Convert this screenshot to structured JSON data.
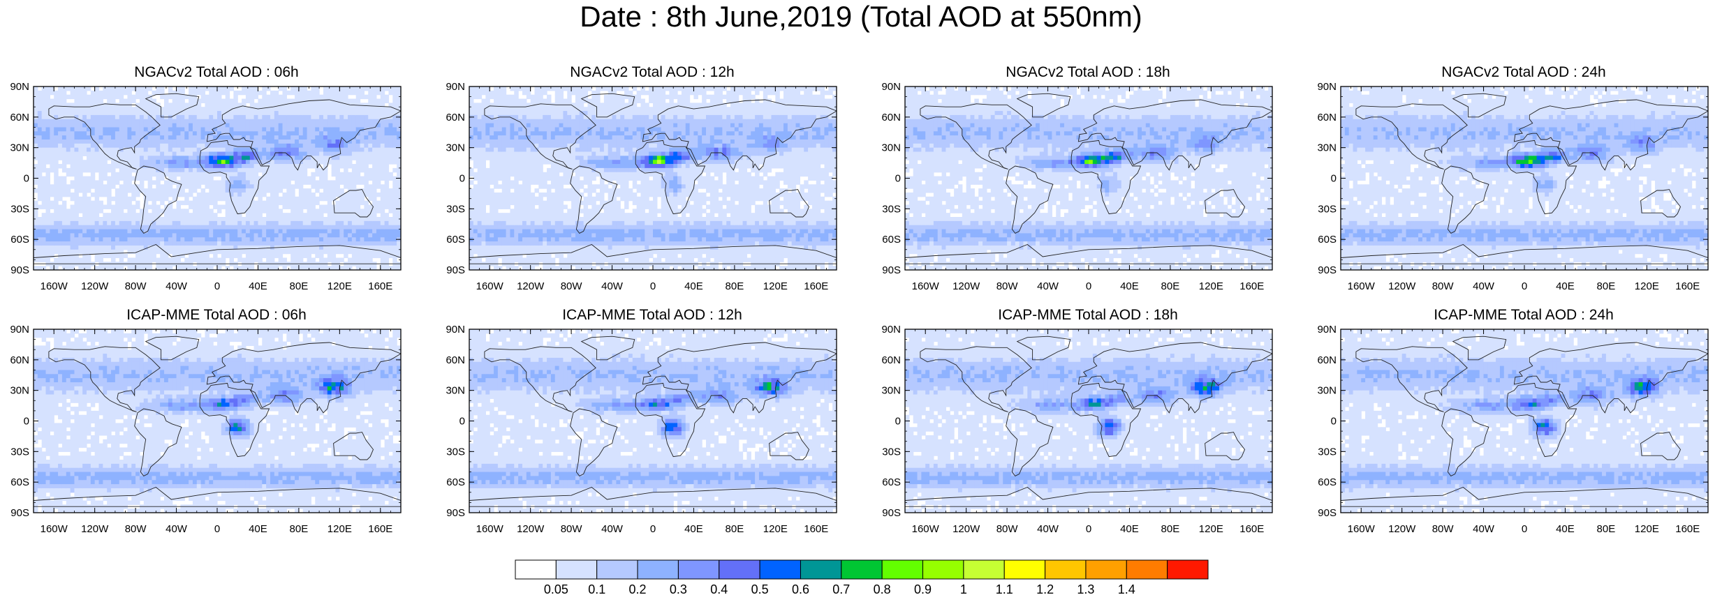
{
  "title": "Date : 8th June,2019 (Total AOD at 550nm)",
  "axes": {
    "lat_ticks": [
      "90N",
      "60N",
      "30N",
      "0",
      "30S",
      "60S",
      "90S"
    ],
    "lon_ticks": [
      "160W",
      "120W",
      "80W",
      "40W",
      "0",
      "40E",
      "80E",
      "120E",
      "160E"
    ],
    "lat_values": [
      90,
      60,
      30,
      0,
      -30,
      -60,
      -90
    ],
    "lon_values": [
      -160,
      -120,
      -80,
      -40,
      0,
      40,
      80,
      120,
      160
    ],
    "lon_range": [
      -180,
      180
    ],
    "lat_range": [
      -90,
      90
    ]
  },
  "panels": [
    {
      "title": "NGACv2 Total AOD : 06h",
      "model": "NGACv2",
      "hour": "06h"
    },
    {
      "title": "NGACv2 Total AOD : 12h",
      "model": "NGACv2",
      "hour": "12h"
    },
    {
      "title": "NGACv2 Total AOD : 18h",
      "model": "NGACv2",
      "hour": "18h"
    },
    {
      "title": "NGACv2 Total AOD : 24h",
      "model": "NGACv2",
      "hour": "24h"
    },
    {
      "title": "ICAP-MME Total AOD : 06h",
      "model": "ICAP-MME",
      "hour": "06h"
    },
    {
      "title": "ICAP-MME Total AOD : 12h",
      "model": "ICAP-MME",
      "hour": "12h"
    },
    {
      "title": "ICAP-MME Total AOD : 18h",
      "model": "ICAP-MME",
      "hour": "18h"
    },
    {
      "title": "ICAP-MME Total AOD : 24h",
      "model": "ICAP-MME",
      "hour": "24h"
    }
  ],
  "colorbar": {
    "labels": [
      "0.05",
      "0.1",
      "0.2",
      "0.3",
      "0.4",
      "0.5",
      "0.6",
      "0.7",
      "0.8",
      "0.9",
      "1",
      "1.1",
      "1.2",
      "1.3",
      "1.4"
    ],
    "colors": [
      "#ffffff",
      "#d6e2ff",
      "#b5c9ff",
      "#8eb2ff",
      "#7f96ff",
      "#6370f8",
      "#0063ff",
      "#009696",
      "#00c633",
      "#63ff00",
      "#96ff00",
      "#c6ff33",
      "#ffff00",
      "#ffc600",
      "#ffa000",
      "#ff7c00",
      "#ff1900"
    ]
  }
}
